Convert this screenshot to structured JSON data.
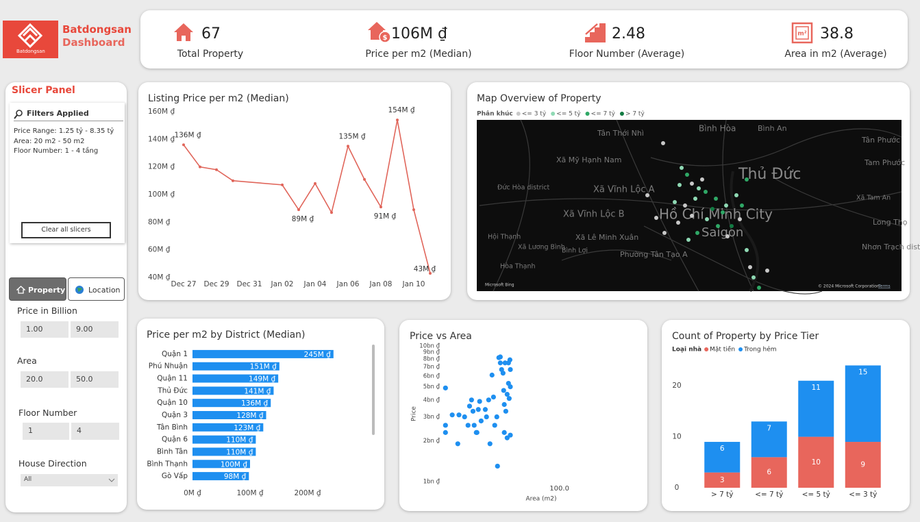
{
  "header": {
    "brand": "Batdongsan",
    "subtitle": "Dashboard",
    "logo_caption": "Batdongsan"
  },
  "kpis": [
    {
      "value": "67",
      "label": "Total Property"
    },
    {
      "value": "106M ₫",
      "label": "Price per m2 (Median)"
    },
    {
      "value": "2.48",
      "label": "Floor Number (Average)"
    },
    {
      "value": "38.8",
      "label": "Area in m2 (Average)"
    }
  ],
  "slicer_panel": {
    "title": "Slicer Panel",
    "filters_title": "Filters Applied",
    "filters": [
      "Price Range: 1.25 tỷ - 8.35 tỷ",
      "Area: 20 m2 - 50 m2",
      "Floor Number: 1 - 4 tầng"
    ],
    "clear_button": "Clear all slicers",
    "tabs": [
      "Property",
      "Location"
    ],
    "slicers": [
      {
        "label": "Price in Billion",
        "min": "1.00",
        "max": "9.00"
      },
      {
        "label": "Area",
        "min": "20.0",
        "max": "50.0"
      },
      {
        "label": "Floor Number",
        "min": "1",
        "max": "4"
      }
    ],
    "dropdown": {
      "label": "House Direction",
      "value": "All"
    }
  },
  "map": {
    "title": "Map Overview of Property",
    "legend_title": "Phân khúc",
    "legend": [
      {
        "name": "<= 3 tỷ",
        "color": "#c8c8c8"
      },
      {
        "name": "<= 5 tỷ",
        "color": "#8fd9b4"
      },
      {
        "name": "<= 7 tỷ",
        "color": "#2fa866"
      },
      {
        "name": "> 7 tỷ",
        "color": "#127a42"
      }
    ],
    "places": [
      "Bình Hòa",
      "Bình An",
      "Tân Thới Nhì",
      "Tân Phước",
      "Tam Phước",
      "Xã Mỹ Hạnh Nam",
      "Thủ Đức",
      "Đức Hòa district",
      "Xã Vĩnh Lộc A",
      "Xã Vĩnh Lộc B",
      "Hồ Chí Minh City",
      "Saigon",
      "Long Thọ",
      "Xã Tam An",
      "Hội Thạnh",
      "Xã Lương Bình",
      "Xã Lê Minh Xuân",
      "Bình Lợi",
      "Phường Tân Tạo A",
      "Hòa Thạnh",
      "Nhơn Trạch district"
    ],
    "attribution": "Microsoft Bing",
    "copyright": "© 2024 Microsoft Corporation",
    "terms": "Terms"
  },
  "chart_data": [
    {
      "type": "line",
      "title": "Listing Price per m2 (Median)",
      "color": "#e0655a",
      "x": [
        "Dec 27",
        "Dec 28",
        "Dec 29",
        "Dec 30",
        "Jan 02",
        "Jan 03",
        "Jan 04",
        "Jan 05",
        "Jan 06",
        "Jan 07",
        "Jan 08",
        "Jan 09",
        "Jan 10",
        "Jan 11"
      ],
      "values": [
        136,
        120,
        118,
        110,
        107,
        89,
        108,
        87,
        135,
        111,
        91,
        154,
        89,
        43
      ],
      "value_labels": [
        "136M ₫",
        null,
        null,
        null,
        null,
        "89M ₫",
        null,
        null,
        "135M ₫",
        null,
        "91M ₫",
        "154M ₫",
        null,
        "43M ₫"
      ],
      "xlim": [
        "Dec 27",
        "Jan 11"
      ],
      "xticks": [
        "Dec 27",
        "Dec 29",
        "Dec 31",
        "Jan 02",
        "Jan 04",
        "Jan 06",
        "Jan 08",
        "Jan 10"
      ],
      "ylim": [
        40,
        160
      ],
      "yticks": [
        {
          "value": 40,
          "label": "40M ₫"
        },
        {
          "value": 60,
          "label": "60M ₫"
        },
        {
          "value": 80,
          "label": "80M ₫"
        },
        {
          "value": 100,
          "label": "100M ₫"
        },
        {
          "value": 120,
          "label": "120M ₫"
        },
        {
          "value": 140,
          "label": "140M ₫"
        },
        {
          "value": 160,
          "label": "160M ₫"
        }
      ]
    },
    {
      "type": "barh",
      "title": "Price per m2 by District (Median)",
      "color": "#1e8ff0",
      "categories": [
        "Quận 1",
        "Phú Nhuận",
        "Quận 11",
        "Thủ Đức",
        "Quận 10",
        "Quận 3",
        "Tân Bình",
        "Quận 6",
        "Bình Tân",
        "Bình Thạnh",
        "Gò Vấp"
      ],
      "values": [
        245,
        151,
        149,
        141,
        136,
        128,
        123,
        110,
        110,
        100,
        98
      ],
      "value_labels": [
        "245M ₫",
        "151M ₫",
        "149M ₫",
        "141M ₫",
        "136M ₫",
        "128M ₫",
        "123M ₫",
        "110M ₫",
        "110M ₫",
        "100M ₫",
        "98M ₫"
      ],
      "xlim": [
        0,
        300
      ],
      "xticks": [
        {
          "value": 0,
          "label": "0M ₫"
        },
        {
          "value": 100,
          "label": "100M ₫"
        },
        {
          "value": 200,
          "label": "200M ₫"
        }
      ]
    },
    {
      "type": "scatter",
      "title": "Price vs Area",
      "color": "#1e8ff0",
      "xlabel": "Area (m2)",
      "ylabel": "Price",
      "xlog": true,
      "ylog": true,
      "x": [
        20,
        20,
        20,
        22,
        23.8,
        24.2,
        26.2,
        27.5,
        28.1,
        28.9,
        29.5,
        30,
        30.9,
        31.2,
        31.8,
        32.4,
        33.1,
        35.1,
        35.7,
        36.8,
        37.5,
        38.6,
        39.4,
        40.1,
        41.3,
        41.7,
        42.5,
        43.4,
        43.4,
        44.2,
        45.1,
        45.9,
        46.4,
        46.9,
        47.8,
        48.7,
        48.7,
        49.2,
        49.7,
        50,
        50,
        50,
        47.8,
        45.9,
        45.5
      ],
      "values": [
        4.9,
        2.6,
        2.3,
        3.1,
        1.9,
        3.1,
        3.0,
        2.6,
        3.6,
        4.0,
        3.3,
        2.6,
        2.3,
        2.3,
        3.4,
        3.9,
        2.8,
        3.4,
        3.0,
        4.0,
        1.9,
        6.1,
        4.2,
        2.6,
        3.0,
        1.3,
        8.2,
        8.3,
        7.5,
        6.7,
        6.3,
        3.7,
        7.5,
        3.3,
        4.4,
        7.5,
        5.3,
        4.1,
        7.9,
        6.7,
        5.0,
        2.2,
        2.1,
        2.3,
        4.7
      ],
      "xlim": [
        19,
        330
      ],
      "xticks": [
        {
          "value": 100,
          "label": "100.0"
        }
      ],
      "ylim": [
        1,
        10
      ],
      "yticks": [
        {
          "value": 1,
          "label": "1bn ₫"
        },
        {
          "value": 2,
          "label": "2bn ₫"
        },
        {
          "value": 3,
          "label": "3bn ₫"
        },
        {
          "value": 4,
          "label": "4bn ₫"
        },
        {
          "value": 5,
          "label": "5bn ₫"
        },
        {
          "value": 6,
          "label": "6bn ₫"
        },
        {
          "value": 7,
          "label": "7bn ₫"
        },
        {
          "value": 8,
          "label": "8bn ₫"
        },
        {
          "value": 9,
          "label": "9bn ₫"
        },
        {
          "value": 10,
          "label": "10bn ₫"
        }
      ]
    },
    {
      "type": "stacked_bar",
      "title": "Count of Property by Price Tier",
      "legend_title": "Loại nhà",
      "categories": [
        "> 7 tỷ",
        "<= 7 tỷ",
        "<= 5 tỷ",
        "<= 3 tỷ"
      ],
      "series": [
        {
          "name": "Mặt tiền",
          "color": "#e8665c",
          "values": [
            3,
            6,
            10,
            9
          ]
        },
        {
          "name": "Trong hẻm",
          "color": "#1e8ff0",
          "values": [
            6,
            7,
            11,
            15
          ]
        }
      ],
      "ylim": [
        0,
        25
      ],
      "yticks": [
        0,
        10,
        20
      ]
    }
  ]
}
